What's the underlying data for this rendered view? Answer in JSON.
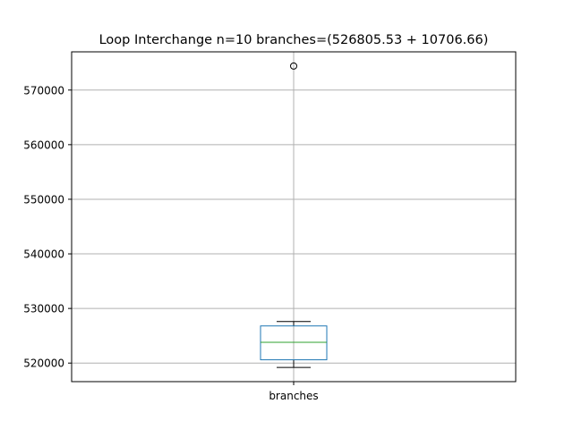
{
  "chart_data": {
    "type": "box",
    "title": "Loop Interchange n=10  branches=(526805.53 + 10706.66)",
    "categories": [
      "branches"
    ],
    "xlabel": "",
    "ylabel": "",
    "ylim": [
      516600,
      577000
    ],
    "yticks": [
      520000,
      530000,
      540000,
      550000,
      560000,
      570000
    ],
    "ytick_labels": [
      "520000",
      "530000",
      "540000",
      "550000",
      "560000",
      "570000"
    ],
    "grid": true,
    "series": [
      {
        "whisker_low": 519200,
        "q1": 520600,
        "median": 523800,
        "q3": 526800,
        "whisker_high": 527600,
        "outliers": [
          574400
        ]
      }
    ],
    "colors": {
      "box": "#1f77b4",
      "median": "#2ca02c",
      "whisker": "#000000",
      "grid": "#b0b0b0",
      "outlier_edge": "#000000"
    }
  }
}
